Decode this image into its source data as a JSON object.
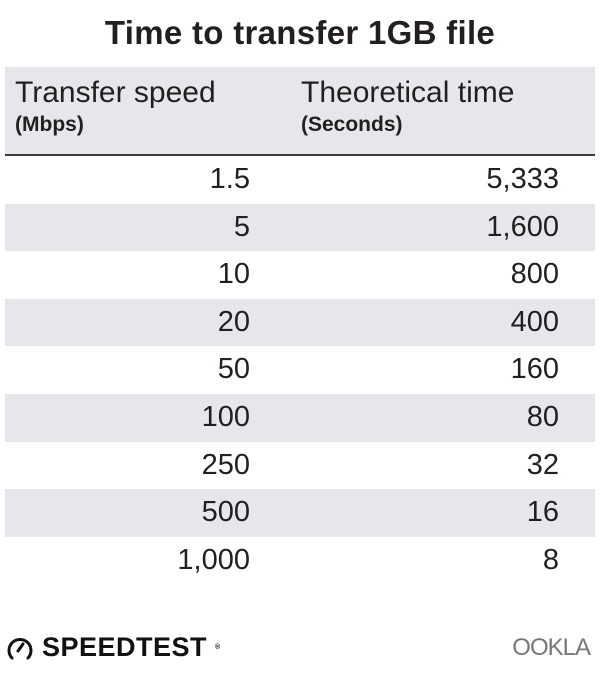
{
  "chart_data": {
    "type": "table",
    "title": "Time to transfer 1GB file",
    "columns": [
      {
        "label": "Transfer speed",
        "unit": "(Mbps)"
      },
      {
        "label": "Theoretical time",
        "unit": "(Seconds)"
      }
    ],
    "rows": [
      [
        "1.5",
        "5,333"
      ],
      [
        "5",
        "1,600"
      ],
      [
        "10",
        "800"
      ],
      [
        "20",
        "400"
      ],
      [
        "50",
        "160"
      ],
      [
        "100",
        "80"
      ],
      [
        "250",
        "32"
      ],
      [
        "500",
        "16"
      ],
      [
        "1,000",
        "8"
      ]
    ]
  },
  "footer": {
    "left_logo": "SPEEDTEST",
    "right_logo": "OOKLA"
  },
  "colors": {
    "stripe": "#e7e7eb",
    "text": "#231f20"
  }
}
